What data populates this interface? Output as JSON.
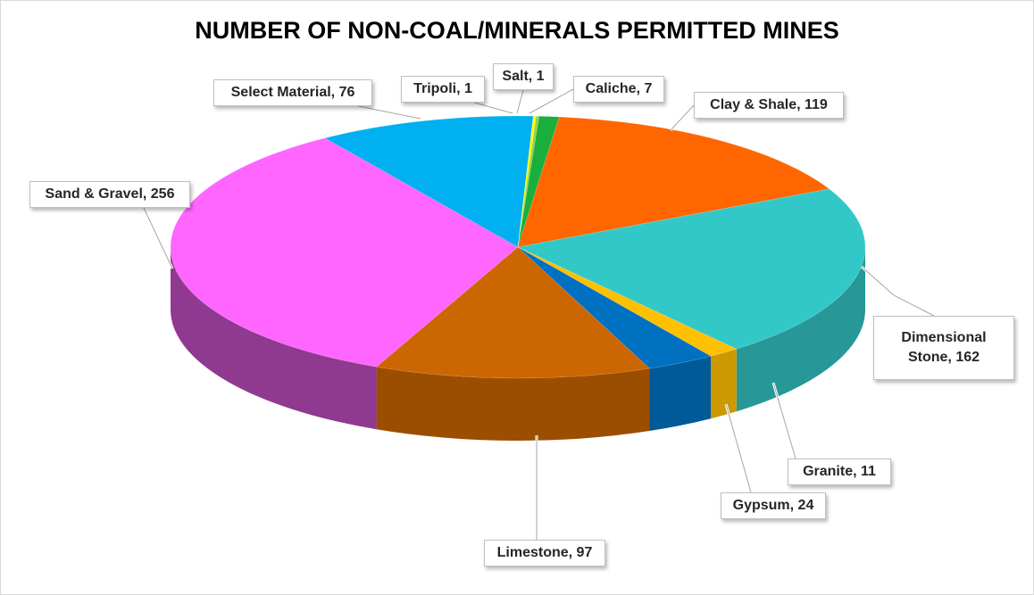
{
  "chart_data": {
    "type": "pie",
    "title": "NUMBER OF NON-COAL/MINERALS PERMITTED MINES",
    "three_d": true,
    "categories": [
      "Caliche",
      "Clay & Shale",
      "Dimensional Stone",
      "Granite",
      "Gypsum",
      "Limestone",
      "Sand & Gravel",
      "Select Material",
      "Tripoli",
      "Salt"
    ],
    "values": [
      7,
      119,
      162,
      11,
      24,
      97,
      256,
      76,
      1,
      1
    ],
    "data_labels": [
      "Caliche, 7",
      "Clay & Shale, 119",
      "Dimensional Stone, 162",
      "Granite, 11",
      "Gypsum, 24",
      "Limestone, 97",
      "Sand & Gravel, 256",
      "Select Material, 76",
      "Tripoli, 1",
      "Salt, 1"
    ],
    "colors": [
      "#1aaf3a",
      "#ff6600",
      "#33c8c8",
      "#ffc000",
      "#0070c0",
      "#cc6600",
      "#ff66ff",
      "#00b0f0",
      "#ffff00",
      "#92d050"
    ],
    "legend": "none",
    "label_style": "callouts"
  }
}
